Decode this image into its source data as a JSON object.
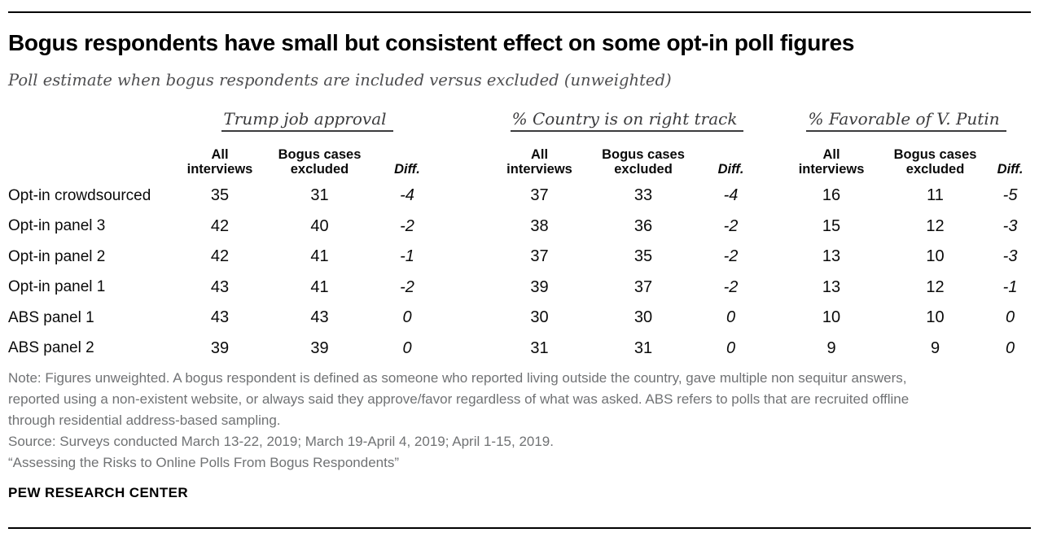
{
  "header": {
    "title": "Bogus respondents have small but consistent effect on some opt-in poll figures",
    "subtitle": "Poll estimate when bogus respondents are included versus excluded (unweighted)"
  },
  "chart_data": {
    "type": "table",
    "title": "Bogus respondents have small but consistent effect on some opt-in poll figures",
    "subtitle": "Poll estimate when bogus respondents are included versus excluded (unweighted)",
    "column_groups": [
      "Trump job approval",
      "% Country is on right track",
      "% Favorable of V. Putin"
    ],
    "columns_per_group": [
      "All interviews",
      "Bogus cases excluded",
      "Diff."
    ],
    "rows": [
      {
        "label": "Opt-in crowdsourced",
        "values": [
          35,
          31,
          "-4",
          37,
          33,
          "-4",
          16,
          11,
          "-5"
        ]
      },
      {
        "label": "Opt-in panel 3",
        "values": [
          42,
          40,
          "-2",
          38,
          36,
          "-2",
          15,
          12,
          "-3"
        ]
      },
      {
        "label": "Opt-in panel 2",
        "values": [
          42,
          41,
          "-1",
          37,
          35,
          "-2",
          13,
          10,
          "-3"
        ]
      },
      {
        "label": "Opt-in panel 1",
        "values": [
          43,
          41,
          "-2",
          39,
          37,
          "-2",
          13,
          12,
          "-1"
        ]
      },
      {
        "label": "ABS panel 1",
        "values": [
          43,
          43,
          "0",
          30,
          30,
          "0",
          10,
          10,
          "0"
        ]
      },
      {
        "label": "ABS panel 2",
        "values": [
          39,
          39,
          "0",
          31,
          31,
          "0",
          9,
          9,
          "0"
        ]
      }
    ]
  },
  "footer": {
    "note": "Note: Figures unweighted. A bogus respondent is defined as someone who reported living outside the country, gave multiple non sequitur answers, reported using a non-existent website, or always said they approve/favor regardless of what was asked. ABS refers to polls that are recruited offline through residential address-based sampling.",
    "source": "Source: Surveys conducted March 13-22, 2019; March 19-April 4, 2019; April 1-15, 2019.",
    "report_title": "“Assessing the Risks to Online Polls From Bogus Respondents”",
    "brand": "PEW RESEARCH CENTER"
  },
  "colors": {
    "rule": "#000000",
    "title_text": "#000000",
    "subtitle_text": "#4e4e50",
    "group_header_text": "#3b3b3d",
    "note_text": "#707274",
    "data_text": "#0a0a0a"
  }
}
